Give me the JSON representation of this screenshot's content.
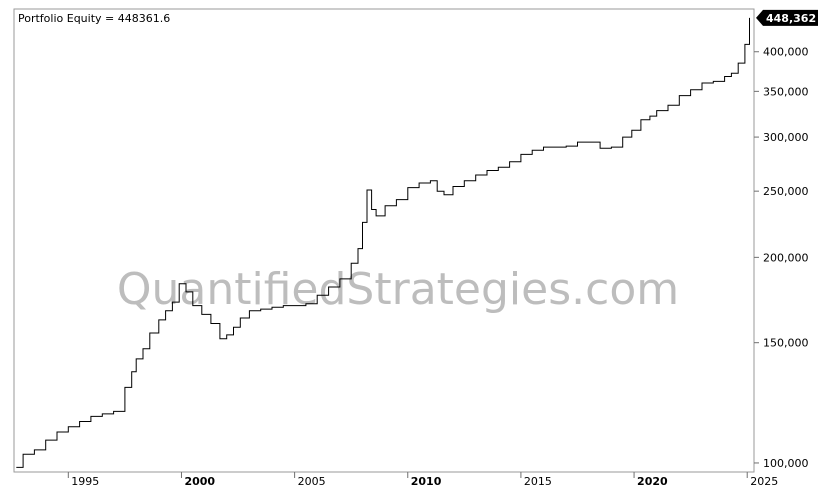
{
  "legend": {
    "label": "Portfolio Equity = 448361.6"
  },
  "watermark": "QuantifiedStrategies.com",
  "last_value_tag": "448,362",
  "chart_data": {
    "type": "line",
    "title": "",
    "xlabel": "",
    "ylabel": "",
    "y_scale": "log",
    "ylim": [
      97000,
      462000
    ],
    "xlim": [
      1992.6,
      2025.3
    ],
    "grid": false,
    "y_ticks": [
      {
        "value": 100000,
        "label": "100,000"
      },
      {
        "value": 150000,
        "label": "150,000"
      },
      {
        "value": 200000,
        "label": "200,000"
      },
      {
        "value": 250000,
        "label": "250,000"
      },
      {
        "value": 300000,
        "label": "300,000"
      },
      {
        "value": 350000,
        "label": "350,000"
      },
      {
        "value": 400000,
        "label": "400,000"
      }
    ],
    "x_ticks": [
      {
        "value": 1995,
        "label": "1995",
        "major": false
      },
      {
        "value": 2000,
        "label": "2000",
        "major": true
      },
      {
        "value": 2005,
        "label": "2005",
        "major": false
      },
      {
        "value": 2010,
        "label": "2010",
        "major": true
      },
      {
        "value": 2015,
        "label": "2015",
        "major": false
      },
      {
        "value": 2020,
        "label": "2020",
        "major": true
      },
      {
        "value": 2025,
        "label": "2025",
        "major": false
      }
    ],
    "series": [
      {
        "name": "Portfolio Equity",
        "color": "#000000",
        "x": [
          1992.7,
          1993.0,
          1993.5,
          1994.0,
          1994.5,
          1995.0,
          1995.5,
          1996.0,
          1996.5,
          1997.0,
          1997.5,
          1997.8,
          1998.0,
          1998.3,
          1998.6,
          1999.0,
          1999.3,
          1999.6,
          1999.9,
          2000.2,
          2000.5,
          2000.9,
          2001.3,
          2001.7,
          2002.0,
          2002.3,
          2002.6,
          2003.0,
          2003.5,
          2004.0,
          2004.5,
          2005.0,
          2005.5,
          2006.0,
          2006.5,
          2007.0,
          2007.5,
          2007.8,
          2008.0,
          2008.2,
          2008.4,
          2008.6,
          2009.0,
          2009.5,
          2010.0,
          2010.5,
          2011.0,
          2011.3,
          2011.6,
          2012.0,
          2012.5,
          2013.0,
          2013.5,
          2014.0,
          2014.5,
          2015.0,
          2015.5,
          2016.0,
          2016.5,
          2017.0,
          2017.5,
          2018.0,
          2018.5,
          2019.0,
          2019.5,
          2019.9,
          2020.3,
          2020.7,
          2021.0,
          2021.5,
          2022.0,
          2022.5,
          2023.0,
          2023.5,
          2024.0,
          2024.3,
          2024.6,
          2024.9,
          2025.1
        ],
        "values": [
          98500,
          103000,
          104500,
          108000,
          111000,
          113000,
          115000,
          117000,
          118000,
          119000,
          129000,
          136000,
          142000,
          147000,
          155000,
          162000,
          167000,
          172000,
          183000,
          178000,
          170000,
          165000,
          160000,
          152000,
          154000,
          158000,
          163000,
          167000,
          168000,
          169000,
          170000,
          170000,
          171000,
          176000,
          181000,
          186000,
          196000,
          206000,
          225000,
          251000,
          235000,
          230000,
          238000,
          243000,
          253000,
          257000,
          259000,
          250000,
          247000,
          254000,
          259000,
          264000,
          268000,
          271000,
          276000,
          283000,
          287000,
          290000,
          290000,
          291000,
          295000,
          295000,
          289000,
          290000,
          300000,
          307000,
          318000,
          322000,
          328000,
          334000,
          345000,
          352000,
          360000,
          362000,
          368000,
          372000,
          385000,
          410000,
          448362
        ]
      }
    ]
  }
}
